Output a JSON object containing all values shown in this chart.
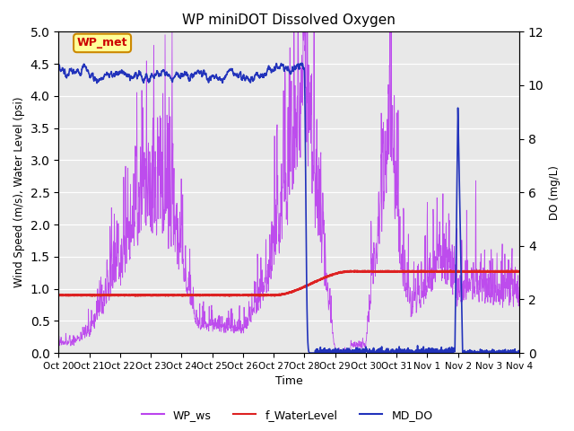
{
  "title": "WP miniDOT Dissolved Oxygen",
  "ylabel_left": "Wind Speed (m/s), Water Level (psi)",
  "ylabel_right": "DO (mg/L)",
  "xlabel": "Time",
  "ylim_left": [
    0,
    5.0
  ],
  "ylim_right": [
    0,
    12
  ],
  "yticks_left": [
    0.0,
    0.5,
    1.0,
    1.5,
    2.0,
    2.5,
    3.0,
    3.5,
    4.0,
    4.5,
    5.0
  ],
  "yticks_right": [
    0,
    2,
    4,
    6,
    8,
    10,
    12
  ],
  "xtick_labels": [
    "Oct 20",
    "Oct 21",
    "Oct 22",
    "Oct 23",
    "Oct 24",
    "Oct 25",
    "Oct 26",
    "Oct 27",
    "Oct 28",
    "Oct 29",
    "Oct 30",
    "Oct 31",
    "Nov 1",
    "Nov 2",
    "Nov 3",
    "Nov 4"
  ],
  "wp_ws_color": "#bb44ee",
  "f_wl_color": "#dd2222",
  "md_do_color": "#2233bb",
  "background_color": "#e8e8e8",
  "annotation_text": "WP_met",
  "annotation_bg": "#ffff99",
  "annotation_border": "#cc8800",
  "annotation_text_color": "#cc0000",
  "legend_labels": [
    "WP_ws",
    "f_WaterLevel",
    "MD_DO"
  ]
}
